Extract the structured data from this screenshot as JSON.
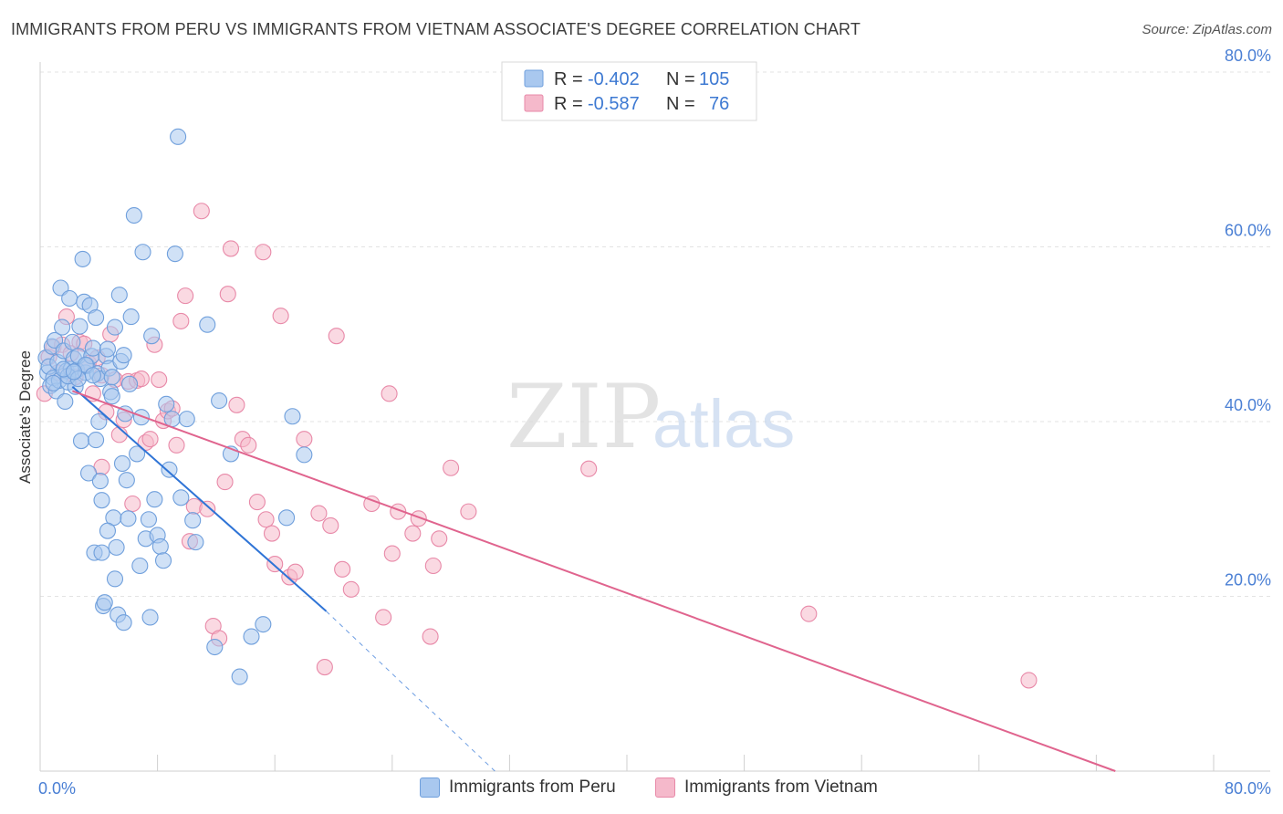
{
  "header": {
    "title": "IMMIGRANTS FROM PERU VS IMMIGRANTS FROM VIETNAM ASSOCIATE'S DEGREE CORRELATION CHART",
    "source": "Source: ZipAtlas.com"
  },
  "watermark": {
    "zip": "ZIP",
    "atlas": "atlas"
  },
  "legend": {
    "peru": {
      "r_label": "R =",
      "r_value": "-0.402",
      "n_label": "N =",
      "n_value": "105"
    },
    "vietnam": {
      "r_label": "R =",
      "r_value": "-0.587",
      "n_label": "N =",
      "n_value": "76"
    }
  },
  "bottom_legend": {
    "peru": "Immigrants from Peru",
    "vietnam": "Immigrants from Vietnam"
  },
  "colors": {
    "peru_fill": "#a9c8ef",
    "peru_stroke": "#6f9fdc",
    "peru_line": "#2f74d6",
    "vietnam_fill": "#f5b9cb",
    "vietnam_stroke": "#e889a8",
    "vietnam_line": "#e0648e",
    "tick": "#4a7fd4",
    "grid": "#e3e3e3"
  },
  "chart_data": {
    "type": "scatter",
    "title": "IMMIGRANTS FROM PERU VS IMMIGRANTS FROM VIETNAM ASSOCIATE'S DEGREE CORRELATION CHART",
    "xlabel": "",
    "ylabel": "Associate's Degree",
    "xlim": [
      0,
      80
    ],
    "ylim": [
      0,
      80
    ],
    "x_tick_labels": [
      "0.0%",
      "80.0%"
    ],
    "y_tick_labels": [
      "20.0%",
      "40.0%",
      "60.0%",
      "80.0%"
    ],
    "y_ticks": [
      20,
      40,
      60,
      80
    ],
    "grid": "horizontal dashed",
    "legend_position": "top-center",
    "series": [
      {
        "name": "Immigrants from Peru",
        "color": "#6f9fdc",
        "points": [
          [
            0.4,
            47.3
          ],
          [
            0.5,
            45.6
          ],
          [
            0.6,
            46.3
          ],
          [
            0.7,
            44.1
          ],
          [
            0.8,
            48.6
          ],
          [
            0.9,
            45.0
          ],
          [
            1.0,
            49.3
          ],
          [
            1.1,
            43.5
          ],
          [
            1.2,
            46.8
          ],
          [
            1.3,
            44.7
          ],
          [
            1.4,
            55.3
          ],
          [
            1.5,
            50.8
          ],
          [
            1.6,
            48.1
          ],
          [
            1.7,
            42.3
          ],
          [
            1.8,
            45.8
          ],
          [
            1.9,
            44.5
          ],
          [
            2.0,
            54.1
          ],
          [
            2.1,
            46.0
          ],
          [
            2.2,
            49.1
          ],
          [
            2.3,
            47.2
          ],
          [
            2.4,
            44.0
          ],
          [
            2.5,
            45.9
          ],
          [
            2.6,
            47.5
          ],
          [
            2.7,
            50.9
          ],
          [
            2.8,
            37.8
          ],
          [
            2.9,
            58.6
          ],
          [
            3.0,
            53.7
          ],
          [
            3.1,
            45.6
          ],
          [
            3.2,
            46.4
          ],
          [
            3.3,
            34.1
          ],
          [
            3.4,
            53.3
          ],
          [
            3.5,
            47.5
          ],
          [
            3.6,
            48.4
          ],
          [
            3.7,
            25.0
          ],
          [
            3.8,
            51.9
          ],
          [
            3.9,
            45.5
          ],
          [
            4.0,
            40.0
          ],
          [
            4.1,
            44.9
          ],
          [
            4.2,
            31.0
          ],
          [
            4.3,
            18.9
          ],
          [
            4.4,
            19.3
          ],
          [
            4.5,
            47.5
          ],
          [
            4.6,
            48.3
          ],
          [
            4.7,
            46.1
          ],
          [
            4.8,
            43.4
          ],
          [
            4.9,
            45.1
          ],
          [
            5.0,
            29.0
          ],
          [
            5.1,
            50.8
          ],
          [
            5.2,
            25.6
          ],
          [
            5.3,
            17.9
          ],
          [
            5.4,
            54.5
          ],
          [
            5.5,
            46.9
          ],
          [
            5.6,
            35.2
          ],
          [
            5.7,
            47.6
          ],
          [
            5.8,
            40.9
          ],
          [
            5.9,
            33.3
          ],
          [
            6.0,
            28.9
          ],
          [
            6.2,
            52.0
          ],
          [
            6.4,
            63.6
          ],
          [
            6.6,
            36.3
          ],
          [
            6.8,
            23.5
          ],
          [
            7.0,
            59.4
          ],
          [
            7.2,
            26.6
          ],
          [
            7.4,
            28.8
          ],
          [
            7.6,
            49.8
          ],
          [
            7.8,
            31.1
          ],
          [
            8.0,
            27.0
          ],
          [
            8.2,
            25.7
          ],
          [
            8.4,
            24.1
          ],
          [
            8.6,
            42.0
          ],
          [
            8.8,
            34.5
          ],
          [
            9.0,
            40.3
          ],
          [
            9.2,
            59.2
          ],
          [
            9.4,
            72.6
          ],
          [
            9.6,
            31.3
          ],
          [
            10.0,
            40.3
          ],
          [
            10.4,
            28.7
          ],
          [
            10.6,
            26.2
          ],
          [
            11.4,
            51.1
          ],
          [
            12.2,
            42.4
          ],
          [
            13.0,
            36.3
          ],
          [
            14.4,
            15.4
          ],
          [
            15.2,
            16.8
          ],
          [
            16.8,
            29.0
          ],
          [
            17.2,
            40.6
          ],
          [
            18.0,
            36.2
          ],
          [
            4.1,
            33.2
          ],
          [
            4.6,
            27.5
          ],
          [
            5.1,
            22.0
          ],
          [
            5.7,
            17.0
          ],
          [
            4.2,
            25.0
          ],
          [
            1.9,
            45.2
          ],
          [
            2.6,
            44.9
          ],
          [
            3.1,
            46.5
          ],
          [
            3.6,
            45.3
          ],
          [
            11.9,
            14.2
          ],
          [
            13.6,
            10.8
          ],
          [
            7.5,
            17.6
          ],
          [
            0.9,
            44.4
          ],
          [
            1.6,
            46.0
          ],
          [
            2.3,
            45.7
          ],
          [
            3.8,
            37.9
          ],
          [
            4.9,
            42.9
          ],
          [
            6.1,
            44.3
          ],
          [
            6.9,
            40.5
          ]
        ]
      },
      {
        "name": "Immigrants from Vietnam",
        "color": "#e889a8",
        "points": [
          [
            0.3,
            43.2
          ],
          [
            0.6,
            47.4
          ],
          [
            0.9,
            48.5
          ],
          [
            1.2,
            45.6
          ],
          [
            1.5,
            48.8
          ],
          [
            1.8,
            52.0
          ],
          [
            2.1,
            47.8
          ],
          [
            2.4,
            45.1
          ],
          [
            2.7,
            49.1
          ],
          [
            3.0,
            48.9
          ],
          [
            3.3,
            46.7
          ],
          [
            3.6,
            43.2
          ],
          [
            3.9,
            47.3
          ],
          [
            4.2,
            45.3
          ],
          [
            4.5,
            41.1
          ],
          [
            4.8,
            50.0
          ],
          [
            5.1,
            44.8
          ],
          [
            5.4,
            38.5
          ],
          [
            5.7,
            40.2
          ],
          [
            6.0,
            44.6
          ],
          [
            6.3,
            30.6
          ],
          [
            6.6,
            44.7
          ],
          [
            6.9,
            44.9
          ],
          [
            7.2,
            37.6
          ],
          [
            7.5,
            38.0
          ],
          [
            7.8,
            48.8
          ],
          [
            8.1,
            44.8
          ],
          [
            8.4,
            40.1
          ],
          [
            8.7,
            41.2
          ],
          [
            9.0,
            41.5
          ],
          [
            9.3,
            37.3
          ],
          [
            9.6,
            51.5
          ],
          [
            9.9,
            54.4
          ],
          [
            10.2,
            26.3
          ],
          [
            10.5,
            30.3
          ],
          [
            11.0,
            64.1
          ],
          [
            11.4,
            30.0
          ],
          [
            11.8,
            16.6
          ],
          [
            12.2,
            15.2
          ],
          [
            12.6,
            33.1
          ],
          [
            12.8,
            54.6
          ],
          [
            13.0,
            59.8
          ],
          [
            13.4,
            41.9
          ],
          [
            13.8,
            38.0
          ],
          [
            14.2,
            37.3
          ],
          [
            14.8,
            30.8
          ],
          [
            15.2,
            59.4
          ],
          [
            15.4,
            28.8
          ],
          [
            15.8,
            27.2
          ],
          [
            16.0,
            23.7
          ],
          [
            16.4,
            52.1
          ],
          [
            17.0,
            22.2
          ],
          [
            17.4,
            22.8
          ],
          [
            18.0,
            38.0
          ],
          [
            19.0,
            29.5
          ],
          [
            19.4,
            11.9
          ],
          [
            19.8,
            28.1
          ],
          [
            20.2,
            49.8
          ],
          [
            20.6,
            23.1
          ],
          [
            21.2,
            20.8
          ],
          [
            22.6,
            30.6
          ],
          [
            23.4,
            17.6
          ],
          [
            23.8,
            43.2
          ],
          [
            24.0,
            24.9
          ],
          [
            24.4,
            29.7
          ],
          [
            25.4,
            27.2
          ],
          [
            25.8,
            28.9
          ],
          [
            26.6,
            15.4
          ],
          [
            26.8,
            23.5
          ],
          [
            27.2,
            26.6
          ],
          [
            28.0,
            34.7
          ],
          [
            29.2,
            29.7
          ],
          [
            37.4,
            34.6
          ],
          [
            52.4,
            18.0
          ],
          [
            67.4,
            10.4
          ],
          [
            4.2,
            34.8
          ]
        ]
      }
    ],
    "trend_lines": [
      {
        "series": "Immigrants from Peru",
        "solid": [
          [
            2.2,
            44.0
          ],
          [
            19.5,
            18.3
          ]
        ],
        "dashed": [
          [
            19.5,
            18.3
          ],
          [
            31.0,
            0.0
          ]
        ]
      },
      {
        "series": "Immigrants from Vietnam",
        "solid": [
          [
            2.2,
            43.5
          ],
          [
            73.3,
            0.0
          ]
        ]
      }
    ]
  }
}
